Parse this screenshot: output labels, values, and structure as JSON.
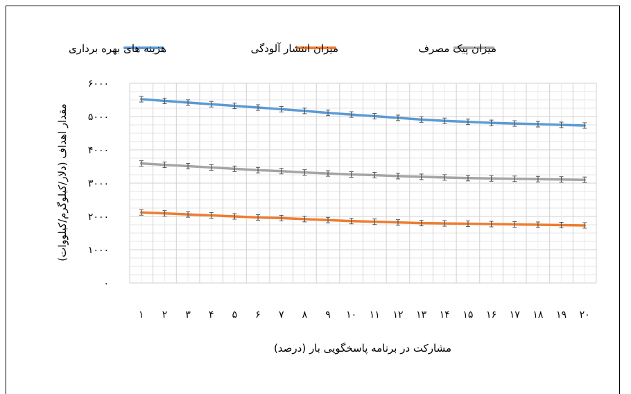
{
  "chart_data": {
    "type": "line",
    "title": "",
    "xlabel": "مشارکت در برنامه پاسخگویی بار (درصد)",
    "ylabel": "مقدار اهداف (دلار/کیلوگرم/کیلووات)",
    "categories": [
      "۱",
      "۲",
      "۳",
      "۴",
      "۵",
      "۶",
      "۷",
      "۸",
      "۹",
      "۱۰",
      "۱۱",
      "۱۲",
      "۱۳",
      "۱۴",
      "۱۵",
      "۱۶",
      "۱۷",
      "۱۸",
      "۱۹",
      "۲۰"
    ],
    "y_ticks": [
      0,
      1000,
      2000,
      3000,
      4000,
      5000,
      6000
    ],
    "y_tick_labels": [
      "۰",
      "۱۰۰۰",
      "۲۰۰۰",
      "۳۰۰۰",
      "۴۰۰۰",
      "۵۰۰۰",
      "۶۰۰۰"
    ],
    "ylim": [
      0,
      6000
    ],
    "grid": true,
    "legend_position": "top",
    "series": [
      {
        "name": "هزینه های بهره برداری",
        "color": "#5B9BD5",
        "values": [
          5520,
          5470,
          5420,
          5370,
          5320,
          5270,
          5220,
          5170,
          5110,
          5060,
          5010,
          4960,
          4910,
          4870,
          4840,
          4810,
          4790,
          4770,
          4750,
          4730
        ]
      },
      {
        "name": "میزان انتشار آلودگی",
        "color": "#ED7D31",
        "values": [
          2120,
          2090,
          2060,
          2030,
          2000,
          1970,
          1950,
          1920,
          1890,
          1860,
          1840,
          1820,
          1800,
          1790,
          1780,
          1770,
          1760,
          1750,
          1740,
          1730
        ]
      },
      {
        "name": "میزان پیک مصرف",
        "color": "#A5A5A5",
        "values": [
          3590,
          3550,
          3510,
          3470,
          3430,
          3390,
          3360,
          3320,
          3290,
          3260,
          3240,
          3210,
          3190,
          3170,
          3150,
          3140,
          3130,
          3120,
          3110,
          3100
        ]
      }
    ]
  }
}
